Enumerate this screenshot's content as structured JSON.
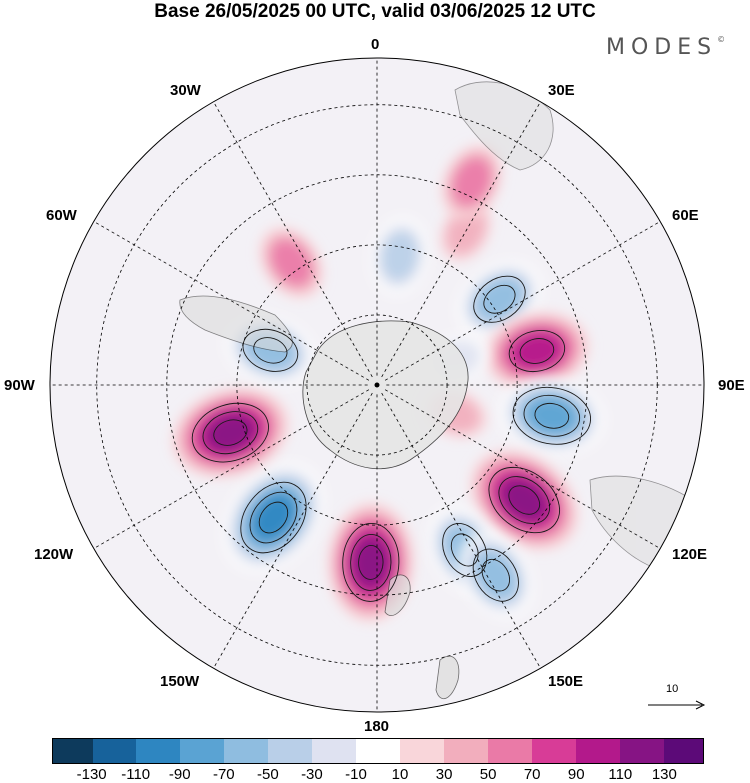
{
  "title": "Base 26/05/2025 00 UTC, valid 03/06/2025 12 UTC",
  "brand": "MODES",
  "brand_mark": "©",
  "longitude_labels": {
    "lon_0": "0",
    "lon_30e": "30E",
    "lon_60e": "60E",
    "lon_90e": "90E",
    "lon_120e": "120E",
    "lon_150e": "150E",
    "lon_180": "180",
    "lon_150w": "150W",
    "lon_120w": "120W",
    "lon_90w": "90W",
    "lon_60w": "60W",
    "lon_30w": "30W"
  },
  "reference_vector": {
    "value": "10"
  },
  "colorbar": {
    "colors": [
      "#0d3a5c",
      "#17629b",
      "#2e86c1",
      "#5aa3d3",
      "#8fbde0",
      "#b9cfe8",
      "#dfe2f1",
      "#ffffff",
      "#f9d6da",
      "#f2aebd",
      "#ea7aa7",
      "#d83c97",
      "#b3198b",
      "#861484",
      "#5c0a78"
    ],
    "tick_labels": [
      "-130",
      "-110",
      "-90",
      "-70",
      "-50",
      "-30",
      "-10",
      "10",
      "30",
      "50",
      "70",
      "90",
      "110",
      "130"
    ]
  },
  "anomaly_centers": [
    {
      "lon": 55,
      "lat": -58,
      "value": -70
    },
    {
      "lon": 78,
      "lat": -55,
      "value": 80
    },
    {
      "lon": 100,
      "lat": -52,
      "value": -90
    },
    {
      "lon": 128,
      "lat": -50,
      "value": 100
    },
    {
      "lon": 152,
      "lat": -50,
      "value": -70
    },
    {
      "lon": 148,
      "lat": -42,
      "value": -60
    },
    {
      "lon": 182,
      "lat": -52,
      "value": 100
    },
    {
      "lon": 218,
      "lat": -54,
      "value": -100
    },
    {
      "lon": 252,
      "lat": -57,
      "value": 110
    },
    {
      "lon": 288,
      "lat": -66,
      "value": -70
    },
    {
      "lon": 325,
      "lat": -58,
      "value": 50
    },
    {
      "lon": 10,
      "lat": -62,
      "value": -50
    },
    {
      "lon": 30,
      "lat": -52,
      "value": 30
    },
    {
      "lon": 25,
      "lat": -42,
      "value": 40
    },
    {
      "lon": 72,
      "lat": -72,
      "value": -30
    },
    {
      "lon": 110,
      "lat": -72,
      "value": 20
    }
  ]
}
